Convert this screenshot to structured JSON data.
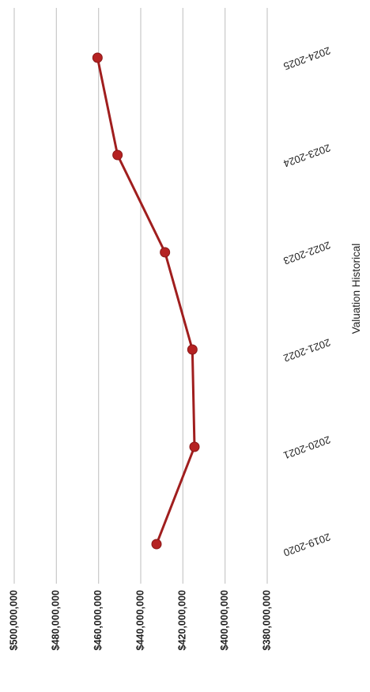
{
  "chart_data": {
    "type": "line",
    "title": "",
    "xlabel": "Valuation Historical",
    "ylabel": "",
    "categories": [
      "2019-2020",
      "2020-2021",
      "2021-2022",
      "2022-2023",
      "2023-2024",
      "2024-2025"
    ],
    "series": [
      {
        "values": [
          432500000,
          414500000,
          415500000,
          428500000,
          451000000,
          460500000
        ]
      }
    ],
    "ylim": [
      380000000,
      500000000
    ],
    "y_ticks": [
      500000000,
      480000000,
      460000000,
      440000000,
      420000000,
      400000000,
      380000000
    ],
    "y_tick_labels": [
      "$500,000,000",
      "$480,000,000",
      "$460,000,000",
      "$440,000,000",
      "$420,000,000",
      "$400,000,000",
      "$380,000,000"
    ],
    "grid": true,
    "legend": "none",
    "orientation": "rotated 90 degrees clockwise",
    "colors": {
      "line": "#a01e1e",
      "marker": "#b52222",
      "grid": "#c8c8c8"
    }
  }
}
